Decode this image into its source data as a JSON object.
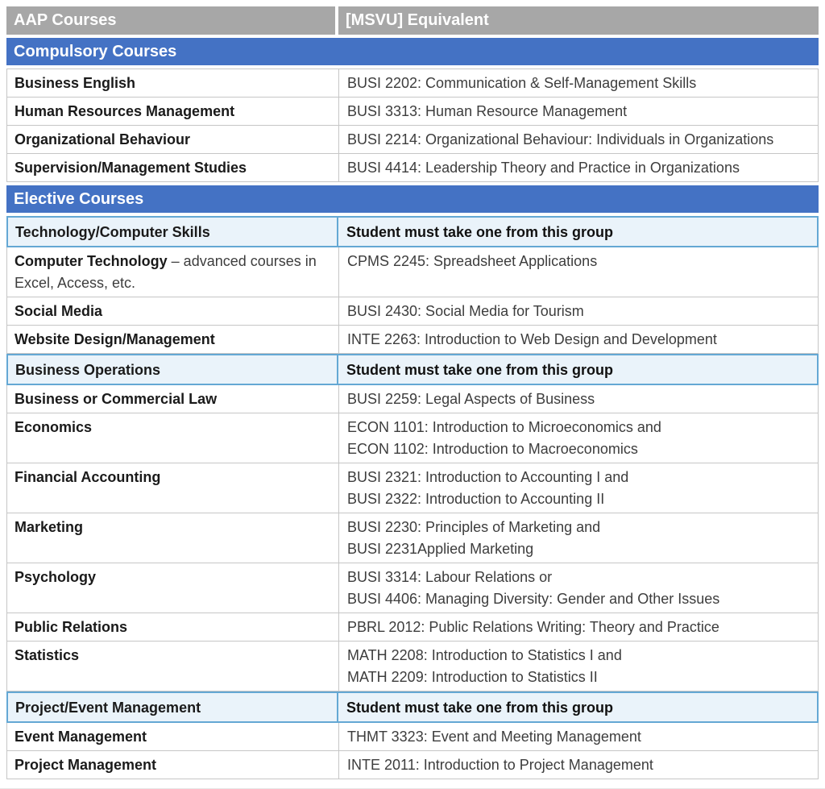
{
  "colors": {
    "header_bg": "#a7a7a7",
    "header_text": "#ffffff",
    "section_bg": "#4472c4",
    "section_text": "#ffffff",
    "group_row_bg": "#eaf3fa",
    "group_row_border": "#64a8d4",
    "grid_line": "#c6c6c6",
    "body_text": "#3d3d3d",
    "bold_text": "#1a1a1a"
  },
  "table": {
    "column_headers": [
      {
        "label": "AAP Courses"
      },
      {
        "label": "[MSVU] Equivalent"
      }
    ],
    "rows": [
      {
        "type": "section",
        "label": "Compulsory Courses"
      },
      {
        "type": "course",
        "course": "Business English",
        "equivalent": [
          "BUSI 2202: Communication & Self-Management Skills"
        ]
      },
      {
        "type": "course",
        "course": "Human Resources Management",
        "equivalent": [
          "BUSI 3313: Human Resource Management"
        ]
      },
      {
        "type": "course",
        "course": "Organizational Behaviour",
        "equivalent": [
          "BUSI 2214: Organizational Behaviour: Individuals in Organizations"
        ]
      },
      {
        "type": "course",
        "course": "Supervision/Management Studies",
        "equivalent": [
          "BUSI 4414: Leadership Theory and Practice in Organizations"
        ]
      },
      {
        "type": "section",
        "label": "Elective Courses"
      },
      {
        "type": "group",
        "course": "Technology/Computer Skills",
        "note": "Student must take one from this group"
      },
      {
        "type": "course",
        "course": "Computer Technology",
        "course_detail": " – advanced courses in Excel, Access, etc.",
        "equivalent": [
          "CPMS 2245: Spreadsheet Applications"
        ]
      },
      {
        "type": "course",
        "course": "Social Media",
        "equivalent": [
          "BUSI 2430: Social Media for Tourism"
        ]
      },
      {
        "type": "course",
        "course": "Website Design/Management",
        "equivalent": [
          "INTE 2263: Introduction to Web Design and Development"
        ]
      },
      {
        "type": "group",
        "course": "Business Operations",
        "note": "Student must take one from this group"
      },
      {
        "type": "course",
        "course": "Business or Commercial Law",
        "equivalent": [
          "BUSI 2259: Legal Aspects of Business"
        ]
      },
      {
        "type": "course",
        "course": "Economics",
        "equivalent": [
          "ECON 1101: Introduction to Microeconomics and",
          "ECON 1102: Introduction to Macroeconomics"
        ]
      },
      {
        "type": "course",
        "course": "Financial Accounting",
        "equivalent": [
          "BUSI 2321: Introduction to Accounting I and",
          "BUSI 2322: Introduction to Accounting II"
        ]
      },
      {
        "type": "course",
        "course": "Marketing",
        "equivalent": [
          "BUSI 2230: Principles of Marketing and",
          "BUSI 2231Applied Marketing"
        ]
      },
      {
        "type": "course",
        "course": "Psychology",
        "equivalent": [
          "BUSI 3314: Labour Relations or",
          "BUSI 4406: Managing Diversity: Gender and Other Issues"
        ]
      },
      {
        "type": "course",
        "course": "Public Relations",
        "equivalent": [
          "PBRL 2012: Public Relations Writing: Theory and Practice"
        ]
      },
      {
        "type": "course",
        "course": "Statistics",
        "equivalent": [
          "MATH 2208: Introduction to Statistics I and",
          "MATH 2209: Introduction to Statistics II"
        ]
      },
      {
        "type": "group",
        "course": "Project/Event Management",
        "note": "Student must take one from this group"
      },
      {
        "type": "course",
        "course": "Event Management",
        "equivalent": [
          "THMT 3323: Event and Meeting Management"
        ]
      },
      {
        "type": "course",
        "course": "Project Management",
        "equivalent": [
          "INTE 2011: Introduction to Project Management"
        ]
      }
    ]
  }
}
